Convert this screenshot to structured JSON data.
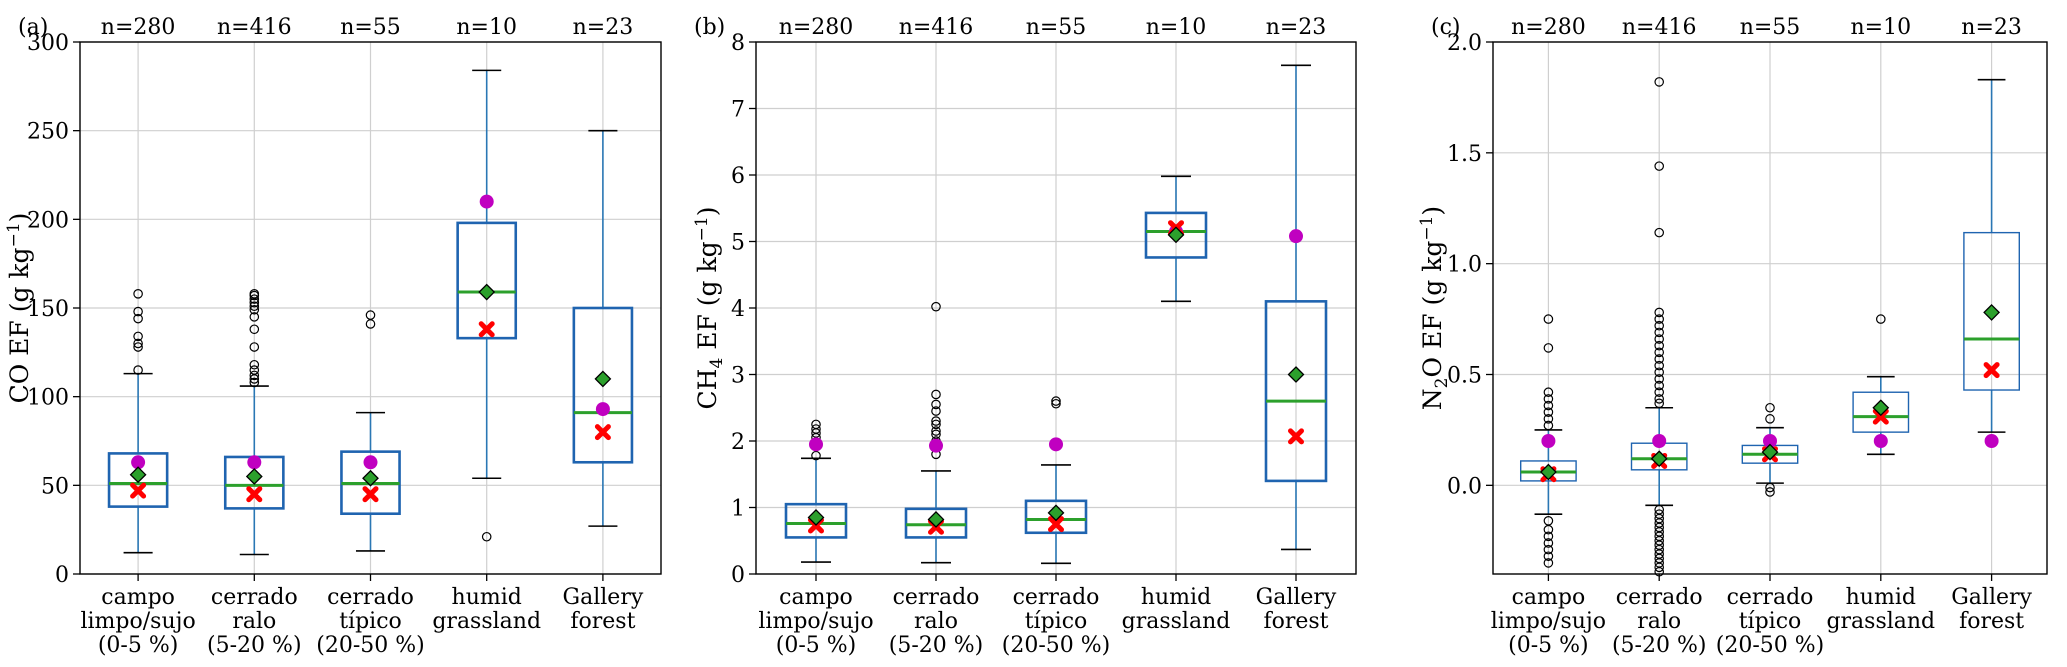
{
  "categories": [
    [
      "campo",
      "limpo/sujo",
      "(0-5 %)"
    ],
    [
      "cerrado",
      "ralo",
      "(5-20 %)"
    ],
    [
      "cerrado",
      "típico",
      "(20-50 %)"
    ],
    [
      "humid",
      "grassland"
    ],
    [
      "Gallery",
      "forest"
    ]
  ],
  "counts": [
    "n=280",
    "n=416",
    "n=55",
    "n=10",
    "n=23"
  ],
  "colors": {
    "box_edge": "#1f64b0",
    "whisker": "#2a77b4",
    "median": "#2ca02c",
    "mean_marker": "#2ca02c",
    "magenta_marker": "#c000c0",
    "red_marker": "#ff0000",
    "grid": "#cfcfcf"
  },
  "chart_data": [
    {
      "type": "box",
      "panel_label": "(a)",
      "ylabel_main": "CO EF (g kg",
      "ylabel_sup": "−1",
      "ylabel_end": ")",
      "ylim": [
        0,
        300
      ],
      "yticks": [
        0,
        50,
        100,
        150,
        200,
        250,
        300
      ],
      "boxes": [
        {
          "whislo": 12,
          "q1": 38,
          "med": 51,
          "q3": 68,
          "whishi": 113,
          "mean": 56,
          "magenta": 63,
          "red": 47,
          "fliers": [
            115,
            128,
            130,
            134,
            144,
            148,
            158
          ]
        },
        {
          "whislo": 11,
          "q1": 37,
          "med": 50,
          "q3": 66,
          "whishi": 106,
          "mean": 55,
          "magenta": 63,
          "red": 45,
          "fliers": [
            108,
            110,
            112,
            115,
            118,
            128,
            138,
            145,
            149,
            151,
            153,
            155,
            157,
            158
          ]
        },
        {
          "whislo": 13,
          "q1": 34,
          "med": 51,
          "q3": 69,
          "whishi": 91,
          "mean": 54,
          "magenta": 63,
          "red": 45,
          "fliers": [
            141,
            146
          ]
        },
        {
          "whislo": 54,
          "q1": 133,
          "med": 159,
          "q3": 198,
          "whishi": 284,
          "mean": 159,
          "magenta": 210,
          "red": 138,
          "fliers": [
            21
          ]
        },
        {
          "whislo": 27,
          "q1": 63,
          "med": 91,
          "q3": 150,
          "whishi": 250,
          "mean": 110,
          "magenta": 93,
          "red": 80,
          "fliers": []
        }
      ]
    },
    {
      "type": "box",
      "panel_label": "(b)",
      "ylabel_main": "CH",
      "ylabel_sub": "4",
      "ylabel_rest": " EF (g kg",
      "ylabel_sup": "−1",
      "ylabel_end": ")",
      "ylim": [
        0,
        8
      ],
      "yticks": [
        0,
        1,
        2,
        3,
        4,
        5,
        6,
        7,
        8
      ],
      "boxes": [
        {
          "whislo": 0.18,
          "q1": 0.55,
          "med": 0.76,
          "q3": 1.05,
          "whishi": 1.74,
          "mean": 0.85,
          "magenta": 1.95,
          "red": 0.73,
          "fliers": [
            1.78,
            2.05,
            2.12,
            2.18,
            2.25
          ]
        },
        {
          "whislo": 0.17,
          "q1": 0.55,
          "med": 0.74,
          "q3": 0.98,
          "whishi": 1.55,
          "mean": 0.82,
          "magenta": 1.93,
          "red": 0.71,
          "fliers": [
            1.8,
            1.9,
            2.0,
            2.1,
            2.15,
            2.25,
            2.3,
            2.45,
            2.55,
            2.7,
            4.02
          ]
        },
        {
          "whislo": 0.16,
          "q1": 0.62,
          "med": 0.82,
          "q3": 1.1,
          "whishi": 1.64,
          "mean": 0.92,
          "magenta": 1.95,
          "red": 0.75,
          "fliers": [
            2.56,
            2.6
          ]
        },
        {
          "whislo": 4.1,
          "q1": 4.76,
          "med": 5.15,
          "q3": 5.43,
          "whishi": 5.98,
          "mean": 5.1,
          "magenta": 5.15,
          "red": 5.2,
          "fliers": []
        },
        {
          "whislo": 0.37,
          "q1": 1.4,
          "med": 2.6,
          "q3": 4.1,
          "whishi": 7.65,
          "mean": 3.0,
          "magenta": 5.08,
          "red": 2.07,
          "fliers": []
        }
      ]
    },
    {
      "type": "box",
      "panel_label": "(c)",
      "ylabel_main": "N",
      "ylabel_sub": "2",
      "ylabel_rest": "O EF (g kg",
      "ylabel_sup": "−1",
      "ylabel_end": ")",
      "ylim": [
        -0.4,
        2.0
      ],
      "yticks": [
        0.0,
        0.5,
        1.0,
        1.5,
        2.0
      ],
      "ytick_labels": [
        "0.0",
        "0.5",
        "1.0",
        "1.5",
        "2.0"
      ],
      "boxes": [
        {
          "whislo": -0.13,
          "q1": 0.02,
          "med": 0.06,
          "q3": 0.11,
          "whishi": 0.25,
          "mean": 0.06,
          "magenta": 0.2,
          "red": 0.05,
          "fliers": [
            0.27,
            0.3,
            0.33,
            0.36,
            0.39,
            0.42,
            0.62,
            0.75,
            -0.16,
            -0.2,
            -0.23,
            -0.26,
            -0.29,
            -0.32,
            -0.35
          ]
        },
        {
          "whislo": -0.09,
          "q1": 0.07,
          "med": 0.12,
          "q3": 0.19,
          "whishi": 0.35,
          "mean": 0.12,
          "magenta": 0.2,
          "red": 0.11,
          "fliers": [
            0.37,
            0.39,
            0.42,
            0.45,
            0.48,
            0.51,
            0.54,
            0.57,
            0.6,
            0.63,
            0.66,
            0.69,
            0.72,
            0.75,
            0.78,
            1.14,
            1.44,
            1.82,
            -0.11,
            -0.13,
            -0.15,
            -0.17,
            -0.19,
            -0.21,
            -0.23,
            -0.25,
            -0.27,
            -0.29,
            -0.31,
            -0.33,
            -0.35,
            -0.37,
            -0.39
          ]
        },
        {
          "whislo": 0.01,
          "q1": 0.1,
          "med": 0.14,
          "q3": 0.18,
          "whishi": 0.26,
          "mean": 0.15,
          "magenta": 0.2,
          "red": 0.14,
          "fliers": [
            0.3,
            0.35,
            -0.01,
            -0.03
          ]
        },
        {
          "whislo": 0.14,
          "q1": 0.24,
          "med": 0.31,
          "q3": 0.42,
          "whishi": 0.49,
          "mean": 0.35,
          "magenta": 0.2,
          "red": 0.31,
          "fliers": [
            0.75
          ]
        },
        {
          "whislo": 0.24,
          "q1": 0.43,
          "med": 0.66,
          "q3": 1.14,
          "whishi": 1.83,
          "mean": 0.78,
          "magenta": 0.2,
          "red": 0.52,
          "fliers": []
        }
      ]
    }
  ]
}
